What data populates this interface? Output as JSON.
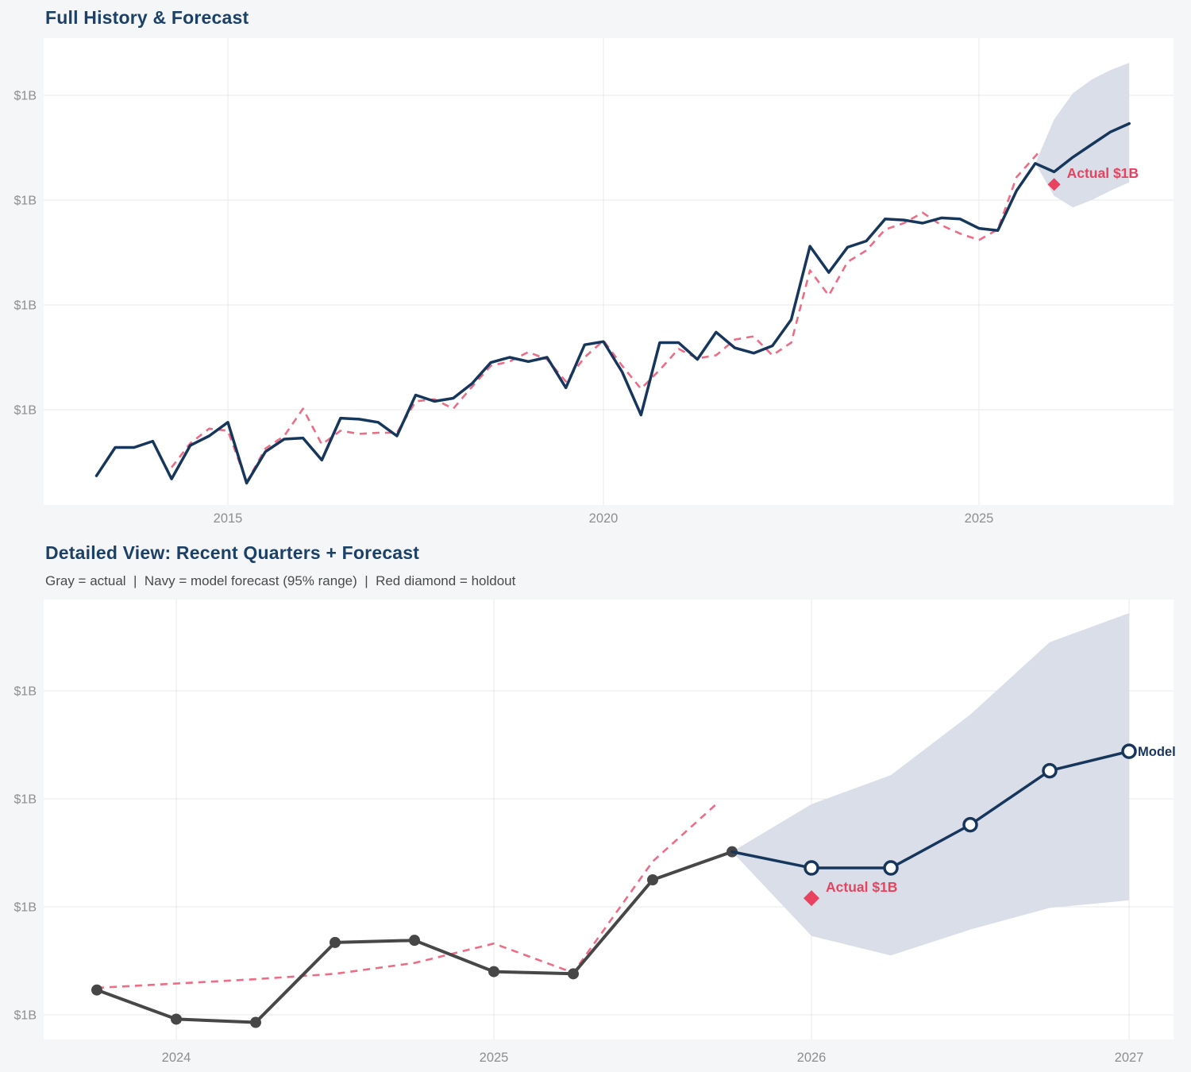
{
  "page": {
    "background": "#f5f6f8"
  },
  "palette": {
    "navy": "#16365c",
    "pink_dashed": "#ed6c86",
    "crimson": "#e8425f",
    "band": "#d9dee8",
    "gray_line": "#474747",
    "grid": "#e8e8e8",
    "tick_text": "#8e8e8e",
    "title": "#1c4168",
    "subtitle": "#4a4a4a",
    "plot_bg": "#ffffff"
  },
  "chart_data": [
    {
      "type": "line",
      "title": "Full History & Forecast",
      "x_tick_labels": [
        "2015",
        "2020",
        "2025"
      ],
      "x_tick_years": [
        2015,
        2020,
        2025
      ],
      "y_tick_labels": [
        "$1B",
        "$1B",
        "$1B",
        "$1B"
      ],
      "y_tick_units": [
        1,
        2,
        3,
        4
      ],
      "value_note": "y values are in relative gridline units read off the chart; every horizontal gridline tick is rendered as $1B",
      "legend_position": "none",
      "grid": true,
      "series": {
        "history": [
          [
            2013.25,
            0.37
          ],
          [
            2013.5,
            0.64
          ],
          [
            2013.75,
            0.64
          ],
          [
            2014.0,
            0.7
          ],
          [
            2014.25,
            0.34
          ],
          [
            2014.5,
            0.66
          ],
          [
            2014.75,
            0.75
          ],
          [
            2015.0,
            0.88
          ],
          [
            2015.25,
            0.3
          ],
          [
            2015.5,
            0.6
          ],
          [
            2015.75,
            0.72
          ],
          [
            2016.0,
            0.73
          ],
          [
            2016.25,
            0.52
          ],
          [
            2016.5,
            0.92
          ],
          [
            2016.75,
            0.91
          ],
          [
            2017.0,
            0.88
          ],
          [
            2017.25,
            0.75
          ],
          [
            2017.5,
            1.14
          ],
          [
            2017.75,
            1.08
          ],
          [
            2018.0,
            1.11
          ],
          [
            2018.25,
            1.25
          ],
          [
            2018.5,
            1.45
          ],
          [
            2018.75,
            1.5
          ],
          [
            2019.0,
            1.46
          ],
          [
            2019.25,
            1.5
          ],
          [
            2019.5,
            1.21
          ],
          [
            2019.75,
            1.62
          ],
          [
            2020.0,
            1.65
          ],
          [
            2020.25,
            1.36
          ],
          [
            2020.5,
            0.95
          ],
          [
            2020.75,
            1.64
          ],
          [
            2021.0,
            1.64
          ],
          [
            2021.25,
            1.48
          ],
          [
            2021.5,
            1.74
          ],
          [
            2021.75,
            1.59
          ],
          [
            2022.0,
            1.54
          ],
          [
            2022.25,
            1.61
          ],
          [
            2022.5,
            1.86
          ],
          [
            2022.75,
            2.56
          ],
          [
            2023.0,
            2.31
          ],
          [
            2023.25,
            2.55
          ],
          [
            2023.5,
            2.61
          ],
          [
            2023.75,
            2.82
          ],
          [
            2024.0,
            2.81
          ],
          [
            2024.25,
            2.78
          ],
          [
            2024.5,
            2.83
          ],
          [
            2024.75,
            2.82
          ],
          [
            2025.0,
            2.73
          ],
          [
            2025.25,
            2.71
          ],
          [
            2025.5,
            3.09
          ],
          [
            2025.75,
            3.35
          ]
        ],
        "forecast": [
          [
            2025.75,
            3.35
          ],
          [
            2026.0,
            3.27
          ],
          [
            2026.25,
            3.41
          ],
          [
            2026.5,
            3.53
          ],
          [
            2026.75,
            3.65
          ],
          [
            2027.0,
            3.73
          ]
        ],
        "fitted_dashed": [
          [
            2014.25,
            0.45
          ],
          [
            2014.5,
            0.68
          ],
          [
            2014.75,
            0.82
          ],
          [
            2015.0,
            0.8
          ],
          [
            2015.25,
            0.31
          ],
          [
            2015.5,
            0.63
          ],
          [
            2015.75,
            0.75
          ],
          [
            2016.0,
            1.01
          ],
          [
            2016.25,
            0.67
          ],
          [
            2016.5,
            0.8
          ],
          [
            2016.75,
            0.77
          ],
          [
            2017.0,
            0.78
          ],
          [
            2017.25,
            0.78
          ],
          [
            2017.5,
            1.08
          ],
          [
            2017.75,
            1.1
          ],
          [
            2018.0,
            1.01
          ],
          [
            2018.25,
            1.22
          ],
          [
            2018.5,
            1.42
          ],
          [
            2018.75,
            1.46
          ],
          [
            2019.0,
            1.55
          ],
          [
            2019.25,
            1.48
          ],
          [
            2019.5,
            1.27
          ],
          [
            2019.75,
            1.5
          ],
          [
            2020.0,
            1.66
          ],
          [
            2020.25,
            1.42
          ],
          [
            2020.5,
            1.2
          ],
          [
            2020.75,
            1.38
          ],
          [
            2021.0,
            1.58
          ],
          [
            2021.25,
            1.49
          ],
          [
            2021.5,
            1.52
          ],
          [
            2021.75,
            1.67
          ],
          [
            2022.0,
            1.7
          ],
          [
            2022.25,
            1.52
          ],
          [
            2022.5,
            1.64
          ],
          [
            2022.75,
            2.33
          ],
          [
            2023.0,
            2.09
          ],
          [
            2023.25,
            2.41
          ],
          [
            2023.5,
            2.52
          ],
          [
            2023.75,
            2.72
          ],
          [
            2024.0,
            2.78
          ],
          [
            2024.25,
            2.88
          ],
          [
            2024.5,
            2.76
          ],
          [
            2024.75,
            2.68
          ],
          [
            2025.0,
            2.62
          ],
          [
            2025.25,
            2.72
          ],
          [
            2025.5,
            3.22
          ],
          [
            2025.8,
            3.46
          ]
        ]
      },
      "band": {
        "x": [
          2025.75,
          2026.0,
          2026.25,
          2026.5,
          2026.75,
          2027.0
        ],
        "upper": [
          3.35,
          3.77,
          4.02,
          4.15,
          4.24,
          4.31
        ],
        "lower": [
          3.35,
          3.04,
          2.93,
          3.0,
          3.09,
          3.17
        ]
      },
      "holdout": {
        "x": 2026.0,
        "y": 3.15,
        "label": "Actual $1B"
      }
    },
    {
      "type": "line",
      "title": "Detailed View: Recent Quarters + Forecast",
      "subtitle": "Gray = actual  |  Navy = model forecast (95% range)  |  Red diamond = holdout",
      "x_tick_labels": [
        "2024",
        "2025",
        "2026",
        "2027"
      ],
      "x_tick_years": [
        2024,
        2025,
        2026,
        2027
      ],
      "y_tick_labels": [
        "$1B",
        "$1B",
        "$1B",
        "$1B"
      ],
      "y_tick_units": [
        1,
        2,
        3,
        4
      ],
      "value_note": "y values are in relative gridline units read off the chart; every horizontal gridline tick is rendered as $1B",
      "legend_position": "none",
      "grid": true,
      "series": {
        "actual": [
          [
            2023.75,
            1.23
          ],
          [
            2024.0,
            0.96
          ],
          [
            2024.25,
            0.93
          ],
          [
            2024.5,
            1.67
          ],
          [
            2024.75,
            1.69
          ],
          [
            2025.0,
            1.4
          ],
          [
            2025.25,
            1.38
          ],
          [
            2025.5,
            2.25
          ],
          [
            2025.75,
            2.51
          ]
        ],
        "forecast": [
          [
            2025.75,
            2.51
          ],
          [
            2026.0,
            2.36
          ],
          [
            2026.25,
            2.36
          ],
          [
            2026.5,
            2.76
          ],
          [
            2026.75,
            3.26
          ],
          [
            2027.0,
            3.44
          ]
        ],
        "fitted_dashed": [
          [
            2023.75,
            1.25
          ],
          [
            2024.0,
            1.29
          ],
          [
            2024.25,
            1.33
          ],
          [
            2024.5,
            1.38
          ],
          [
            2024.75,
            1.48
          ],
          [
            2025.0,
            1.66
          ],
          [
            2025.25,
            1.39
          ],
          [
            2025.5,
            2.42
          ],
          [
            2025.7,
            2.95
          ]
        ]
      },
      "band": {
        "x": [
          2025.75,
          2026.0,
          2026.25,
          2026.5,
          2026.75,
          2027.0
        ],
        "upper": [
          2.51,
          2.95,
          3.22,
          3.78,
          4.45,
          4.72
        ],
        "lower": [
          2.51,
          1.73,
          1.55,
          1.79,
          1.99,
          2.06
        ]
      },
      "holdout": {
        "x": 2026.0,
        "y": 2.08,
        "label": "Actual $1B"
      },
      "model_label": "Model"
    }
  ]
}
